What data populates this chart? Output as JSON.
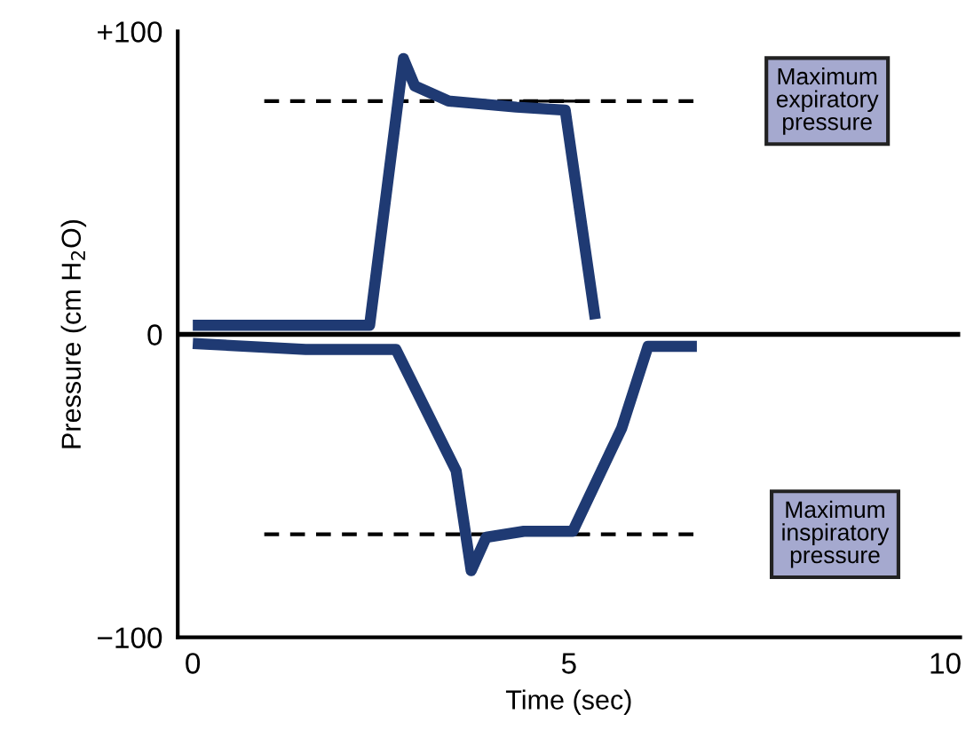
{
  "chart_data": {
    "type": "line",
    "xlabel": "Time (sec)",
    "ylabel": "Pressure (cm H$_{2}$O)",
    "xlim": [
      -0.2,
      10.2
    ],
    "ylim": [
      -100,
      100
    ],
    "xticks": [
      0,
      5,
      10
    ],
    "yticks": [
      {
        "value": -100,
        "label": "−100"
      },
      0,
      {
        "value": 100,
        "label": "+100"
      }
    ],
    "grid": false,
    "marker": "none",
    "series": [
      {
        "color": "#1f3a73",
        "line_style": "solid",
        "x": [
          0,
          2.35,
          2.8,
          2.95,
          3.4,
          4.3,
          4.95,
          5.35
        ],
        "values": [
          3,
          3,
          91,
          82,
          77,
          75,
          74,
          5
        ]
      },
      {
        "color": "#1f3a73",
        "line_style": "solid",
        "x": [
          0,
          1.5,
          2.7,
          3.5,
          3.7,
          3.9,
          4.4,
          5.05,
          5.7,
          6.05,
          6.7
        ],
        "values": [
          -3,
          -5,
          -5,
          -45,
          -78,
          -67,
          -65,
          -65,
          -31,
          -4,
          -4
        ]
      },
      {
        "color": "#000000",
        "line_style": "dashed",
        "x": [
          0.95,
          6.7
        ],
        "values": [
          77,
          77
        ]
      },
      {
        "color": "#000000",
        "line_style": "dashed",
        "x": [
          0.95,
          6.7
        ],
        "values": [
          -66,
          -66
        ]
      }
    ],
    "ref_lines": [
      {
        "axis": "y",
        "value": 0,
        "color": "#000000",
        "line_style": "solid"
      }
    ],
    "annotations": [
      "Maximum\nexpiratory\npressure",
      "Maximum\ninspiratory\npressure"
    ]
  }
}
